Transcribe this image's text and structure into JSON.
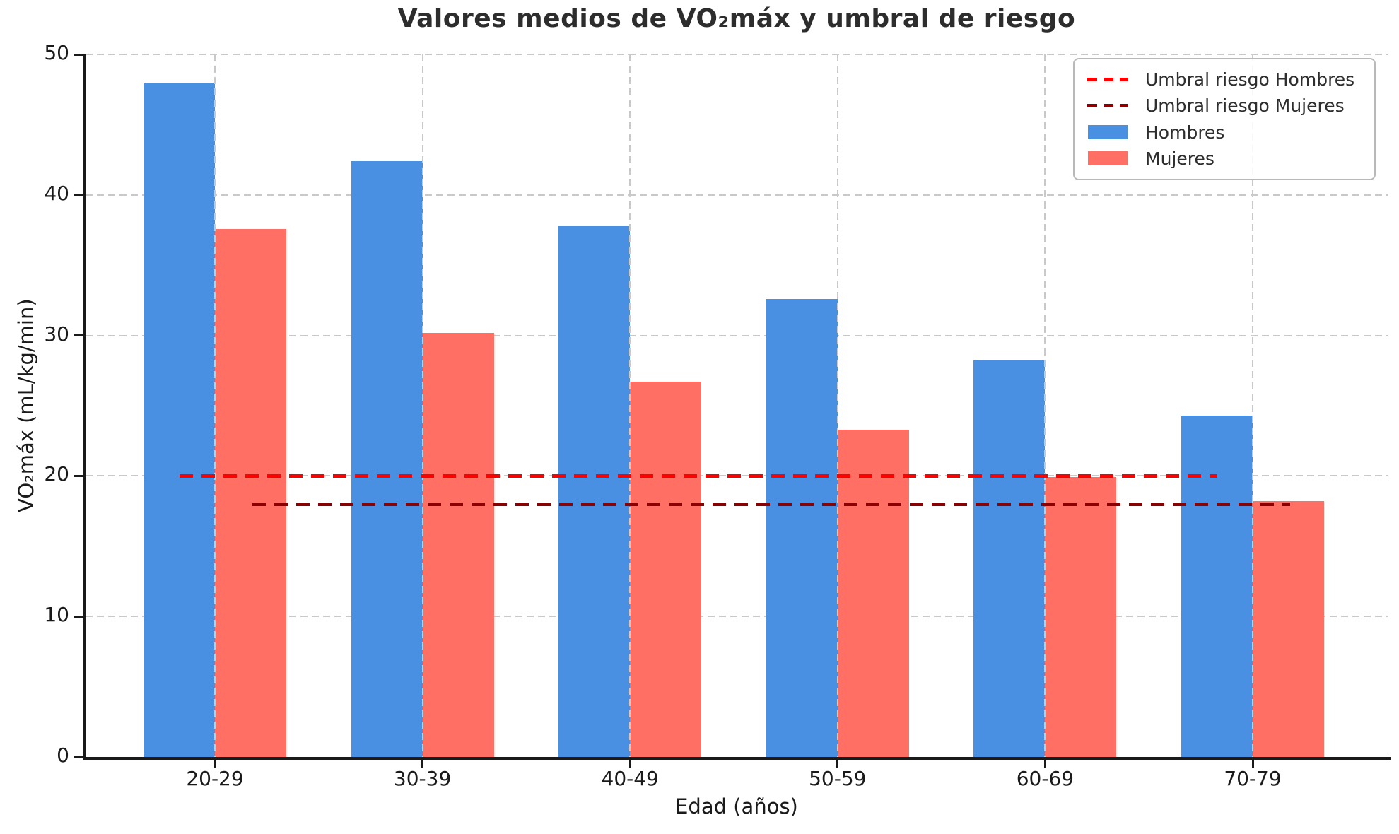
{
  "chart_data": {
    "type": "bar",
    "title": "Valores medios de VO₂máx y umbral de riesgo",
    "xlabel": "Edad (años)",
    "ylabel": "VO₂máx (mL/kg/min)",
    "categories": [
      "20-29",
      "30-39",
      "40-49",
      "50-59",
      "60-69",
      "70-79"
    ],
    "series": [
      {
        "name": "Hombres",
        "color": "#4a90e2",
        "values": [
          48.0,
          42.4,
          37.8,
          32.6,
          28.2,
          24.3
        ]
      },
      {
        "name": "Mujeres",
        "color": "#ff6f63",
        "values": [
          37.6,
          30.2,
          26.7,
          23.3,
          19.9,
          18.2
        ]
      }
    ],
    "threshold_lines": [
      {
        "name": "Umbral riesgo Hombres",
        "value": 20,
        "color": "#ff0000",
        "span_frac": [
          0.072,
          0.869
        ]
      },
      {
        "name": "Umbral riesgo Mujeres",
        "value": 18,
        "color": "#8b0000",
        "span_frac": [
          0.128,
          0.925
        ]
      }
    ],
    "ylim": [
      0,
      50
    ],
    "yticks": [
      0,
      10,
      20,
      30,
      40,
      50
    ],
    "grid": true,
    "legend_position": "upper right",
    "legend": [
      {
        "label": "Umbral riesgo Hombres",
        "swatch": "dashed-line",
        "color": "#ff0000"
      },
      {
        "label": "Umbral riesgo Mujeres",
        "swatch": "dashed-line",
        "color": "#8b0000"
      },
      {
        "label": "Hombres",
        "swatch": "patch",
        "color": "#4a90e2"
      },
      {
        "label": "Mujeres",
        "swatch": "patch",
        "color": "#ff6f63"
      }
    ],
    "grid_color": "#c9c9c9",
    "axis_color": "#1a1a1a"
  }
}
